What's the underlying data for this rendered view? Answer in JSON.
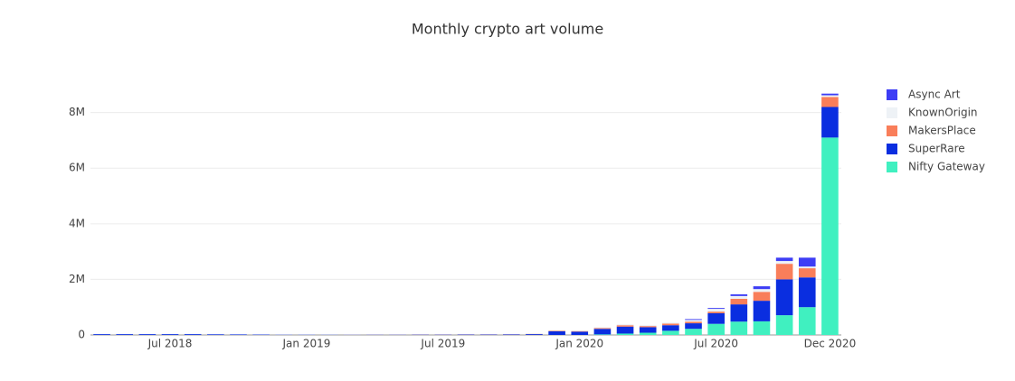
{
  "chart_data": {
    "type": "stacked_bar",
    "title": "Monthly crypto art volume",
    "categories": [
      null,
      null,
      null,
      "Jul 2018",
      null,
      null,
      null,
      null,
      null,
      "Jan 2019",
      null,
      null,
      null,
      null,
      null,
      "Jul 2019",
      null,
      null,
      null,
      null,
      null,
      "Jan 2020",
      null,
      null,
      null,
      null,
      null,
      "Jul 2020",
      null,
      null,
      null,
      null,
      "Dec 2020"
    ],
    "series": [
      {
        "name": "Nifty Gateway",
        "color": "#40f0c0",
        "values": [
          0,
          0,
          0,
          0,
          0,
          0,
          0,
          0,
          0,
          0,
          0,
          0,
          0,
          0,
          0,
          0,
          0,
          0,
          0,
          0,
          0,
          0,
          20000,
          50000,
          80000,
          150000,
          220000,
          400000,
          480000,
          490000,
          710000,
          1000000,
          7100000
        ]
      },
      {
        "name": "SuperRare",
        "color": "#0a2ee0",
        "values": [
          30000,
          30000,
          30000,
          30000,
          30000,
          25000,
          20000,
          15000,
          10000,
          10000,
          8000,
          8000,
          10000,
          10000,
          12000,
          12000,
          15000,
          15000,
          20000,
          30000,
          130000,
          120000,
          200000,
          250000,
          200000,
          200000,
          200000,
          380000,
          620000,
          740000,
          1290000,
          1070000,
          1100000
        ]
      },
      {
        "name": "MakersPlace",
        "color": "#f97e5a",
        "values": [
          0,
          0,
          0,
          0,
          0,
          0,
          0,
          0,
          0,
          0,
          0,
          2000,
          3000,
          3000,
          4000,
          4000,
          5000,
          5000,
          6000,
          8000,
          20000,
          20000,
          30000,
          50000,
          40000,
          60000,
          60000,
          60000,
          200000,
          320000,
          560000,
          330000,
          360000
        ]
      },
      {
        "name": "KnownOrigin",
        "color": "#eef2f6",
        "values": [
          5000,
          5000,
          5000,
          5000,
          5000,
          5000,
          5000,
          5000,
          5000,
          5000,
          5000,
          5000,
          5000,
          5000,
          5000,
          5000,
          5000,
          5000,
          5000,
          5000,
          10000,
          10000,
          30000,
          40000,
          40000,
          40000,
          60000,
          100000,
          100000,
          100000,
          100000,
          60000,
          60000
        ]
      },
      {
        "name": "Async Art",
        "color": "#3d3df5",
        "values": [
          0,
          0,
          0,
          0,
          0,
          0,
          0,
          0,
          0,
          0,
          0,
          0,
          0,
          0,
          0,
          0,
          0,
          0,
          0,
          0,
          0,
          0,
          0,
          0,
          0,
          0,
          30000,
          30000,
          60000,
          100000,
          120000,
          320000,
          60000
        ]
      }
    ],
    "ylim": [
      0,
      8800000
    ],
    "yticks": [
      {
        "value": 0,
        "label": "0"
      },
      {
        "value": 2000000,
        "label": "2M"
      },
      {
        "value": 4000000,
        "label": "4M"
      },
      {
        "value": 6000000,
        "label": "6M"
      },
      {
        "value": 8000000,
        "label": "8M"
      }
    ],
    "grid": true,
    "legend": "right"
  }
}
